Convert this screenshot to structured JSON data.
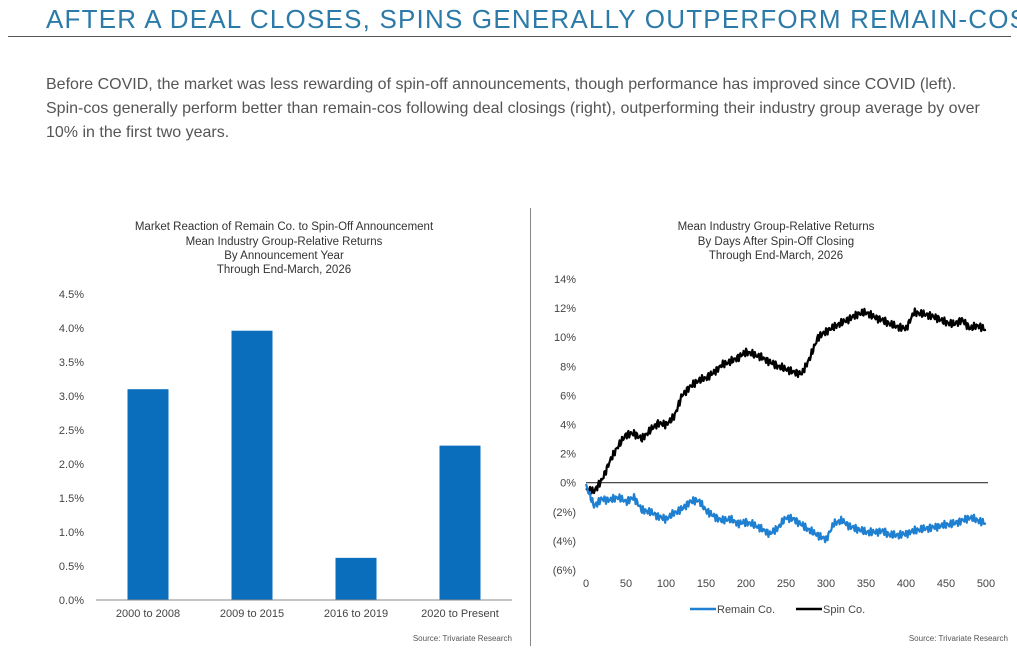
{
  "headline": "AFTER A DEAL CLOSES, SPINS GENERALLY OUTPERFORM REMAIN-COS",
  "intro": "Before COVID, the market was less rewarding of spin-off announcements, though performance has improved since COVID (left). Spin-cos generally perform better than remain-cos following deal closings (right), outperforming their industry group average by over 10% in the first two years.",
  "colors": {
    "accent": "#2b7aa8",
    "bar": "#0a6ebd",
    "remain": "#1f7fd0",
    "spin": "#000000",
    "zero_line": "#333333"
  },
  "chart_data": [
    {
      "type": "bar",
      "title_lines": [
        "Market Reaction of Remain Co. to Spin-Off Announcement",
        "Mean Industry Group-Relative Returns",
        "By Announcement Year",
        "Through End-March, 2026"
      ],
      "categories": [
        "2000 to 2008",
        "2009 to 2015",
        "2016 to 2019",
        "2020 to Present"
      ],
      "values": [
        3.1,
        3.96,
        0.62,
        2.27
      ],
      "ylim": [
        0,
        4.5
      ],
      "yticks": [
        0,
        0.5,
        1.0,
        1.5,
        2.0,
        2.5,
        3.0,
        3.5,
        4.0,
        4.5
      ],
      "ytick_labels": [
        "0.0%",
        "0.5%",
        "1.0%",
        "1.5%",
        "2.0%",
        "2.5%",
        "3.0%",
        "3.5%",
        "4.0%",
        "4.5%"
      ],
      "source": "Source: Trivariate Research"
    },
    {
      "type": "line",
      "title_lines": [
        "Mean Industry Group-Relative Returns",
        "By Days After Spin-Off Closing",
        "Through End-March, 2026"
      ],
      "xlim": [
        0,
        500
      ],
      "xticks": [
        0,
        50,
        100,
        150,
        200,
        250,
        300,
        350,
        400,
        450,
        500
      ],
      "xtick_labels": [
        "0",
        "50",
        "100",
        "150",
        "200",
        "250",
        "300",
        "350",
        "400",
        "450",
        "500"
      ],
      "ylim": [
        -6,
        14
      ],
      "yticks": [
        -6,
        -4,
        -2,
        0,
        2,
        4,
        6,
        8,
        10,
        12,
        14
      ],
      "ytick_labels": [
        "(6%)",
        "(4%)",
        "(2%)",
        "0%",
        "2%",
        "4%",
        "6%",
        "8%",
        "10%",
        "12%",
        "14%"
      ],
      "x": [
        0,
        10,
        20,
        30,
        40,
        50,
        60,
        70,
        80,
        90,
        100,
        110,
        120,
        130,
        140,
        150,
        160,
        170,
        180,
        190,
        200,
        210,
        220,
        230,
        240,
        250,
        260,
        270,
        280,
        290,
        300,
        310,
        320,
        330,
        340,
        350,
        360,
        370,
        380,
        390,
        400,
        410,
        420,
        430,
        440,
        450,
        460,
        470,
        480,
        490,
        500
      ],
      "series": [
        {
          "name": "Spin Co.",
          "values": [
            -0.5,
            -0.6,
            0.2,
            1.5,
            2.5,
            3.3,
            3.4,
            3.0,
            3.6,
            4.1,
            4.0,
            4.5,
            6.0,
            6.6,
            7.0,
            7.2,
            7.6,
            8.1,
            8.3,
            8.6,
            9.0,
            8.8,
            8.6,
            8.3,
            8.0,
            7.8,
            7.6,
            7.5,
            8.6,
            10.0,
            10.4,
            10.7,
            11.0,
            11.3,
            11.6,
            11.7,
            11.4,
            11.2,
            10.9,
            10.7,
            10.6,
            11.7,
            11.6,
            11.5,
            11.3,
            11.0,
            10.9,
            11.2,
            10.6,
            10.8,
            10.5
          ]
        },
        {
          "name": "Remain Co.",
          "values": [
            -0.2,
            -1.6,
            -1.1,
            -1.2,
            -1.0,
            -1.3,
            -1.0,
            -1.9,
            -2.0,
            -2.3,
            -2.5,
            -2.1,
            -1.8,
            -1.3,
            -1.2,
            -1.9,
            -2.3,
            -2.6,
            -2.5,
            -2.8,
            -2.7,
            -2.9,
            -3.2,
            -3.5,
            -3.1,
            -2.4,
            -2.5,
            -2.9,
            -3.3,
            -3.6,
            -3.9,
            -2.8,
            -2.6,
            -3.0,
            -3.2,
            -3.4,
            -3.4,
            -3.3,
            -3.6,
            -3.6,
            -3.5,
            -3.3,
            -3.2,
            -3.1,
            -3.0,
            -2.9,
            -2.8,
            -2.6,
            -2.4,
            -2.6,
            -2.8
          ]
        }
      ],
      "legend": [
        "Remain Co.",
        "Spin Co."
      ],
      "legend_position": "bottom-center",
      "source": "Source: Trivariate Research"
    }
  ]
}
